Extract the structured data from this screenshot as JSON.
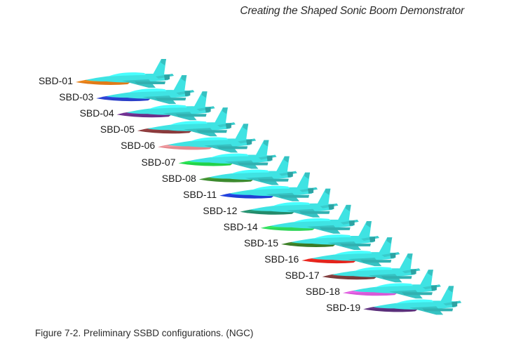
{
  "header": {
    "running_title": "Creating the Shaped Sonic Boom Demonstrator"
  },
  "figure": {
    "caption": "Figure 7-2. Preliminary SSBD configurations. (NGC)",
    "configurations": [
      {
        "label": "SBD-01",
        "nose_color": "#e07a18"
      },
      {
        "label": "SBD-03",
        "nose_color": "#2a3fc8"
      },
      {
        "label": "SBD-04",
        "nose_color": "#6a2f8a"
      },
      {
        "label": "SBD-05",
        "nose_color": "#8a3a3c"
      },
      {
        "label": "SBD-06",
        "nose_color": "#e58a8f"
      },
      {
        "label": "SBD-07",
        "nose_color": "#22d24a"
      },
      {
        "label": "SBD-08",
        "nose_color": "#3c8a2e"
      },
      {
        "label": "SBD-11",
        "nose_color": "#1f3ed4"
      },
      {
        "label": "SBD-12",
        "nose_color": "#238a6a"
      },
      {
        "label": "SBD-14",
        "nose_color": "#2fd65a"
      },
      {
        "label": "SBD-15",
        "nose_color": "#3a7a26"
      },
      {
        "label": "SBD-16",
        "nose_color": "#e4241c"
      },
      {
        "label": "SBD-17",
        "nose_color": "#7a3a3a"
      },
      {
        "label": "SBD-18",
        "nose_color": "#d85ad8"
      },
      {
        "label": "SBD-19",
        "nose_color": "#5a2f7a"
      }
    ],
    "aircraft_color": "#3fe3e3"
  }
}
